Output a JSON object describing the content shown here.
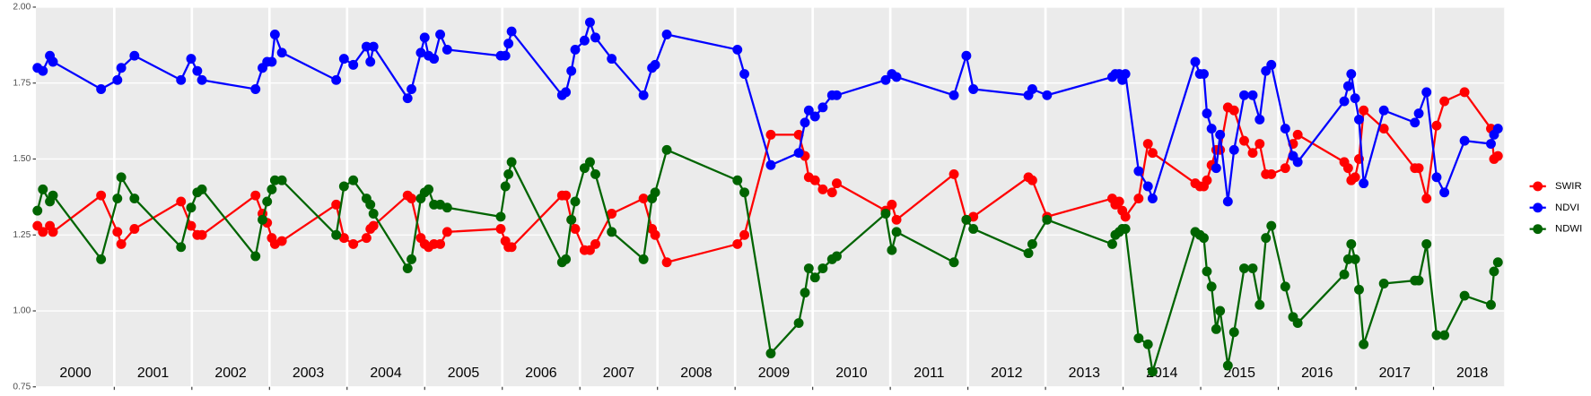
{
  "chart_data": {
    "type": "line",
    "x": [
      2000.01,
      2000.08,
      2000.17,
      2000.21,
      2000.83,
      2001.04,
      2001.09,
      2001.26,
      2001.86,
      2001.99,
      2002.07,
      2002.13,
      2002.82,
      2002.91,
      2002.97,
      2003.03,
      2003.07,
      2003.16,
      2003.86,
      2003.96,
      2004.08,
      2004.25,
      2004.3,
      2004.34,
      2004.78,
      2004.83,
      2004.95,
      2005.0,
      2005.05,
      2005.12,
      2005.2,
      2005.29,
      2005.98,
      2006.04,
      2006.08,
      2006.12,
      2006.77,
      2006.82,
      2006.89,
      2006.94,
      2007.06,
      2007.13,
      2007.2,
      2007.41,
      2007.82,
      2007.93,
      2007.97,
      2008.12,
      2009.03,
      2009.12,
      2009.46,
      2009.82,
      2009.9,
      2009.95,
      2010.03,
      2010.13,
      2010.25,
      2010.31,
      2010.94,
      2011.02,
      2011.08,
      2011.82,
      2011.98,
      2012.07,
      2012.78,
      2012.83,
      2013.02,
      2013.86,
      2013.9,
      2013.95,
      2013.99,
      2014.03,
      2014.2,
      2014.32,
      2014.38,
      2014.93,
      2014.99,
      2015.04,
      2015.08,
      2015.14,
      2015.2,
      2015.25,
      2015.35,
      2015.43,
      2015.56,
      2015.67,
      2015.76,
      2015.84,
      2015.91,
      2016.09,
      2016.19,
      2016.25,
      2016.85,
      2016.9,
      2016.94,
      2016.99,
      2017.04,
      2017.1,
      2017.36,
      2017.76,
      2017.81,
      2017.91,
      2018.04,
      2018.14,
      2018.4,
      2018.74,
      2018.78,
      2018.83
    ],
    "series": [
      {
        "name": "SWIR",
        "color": "#ff0000",
        "values": [
          1.28,
          1.26,
          1.28,
          1.26,
          1.38,
          1.26,
          1.22,
          1.27,
          1.36,
          1.28,
          1.25,
          1.25,
          1.38,
          1.32,
          1.29,
          1.24,
          1.22,
          1.23,
          1.35,
          1.24,
          1.22,
          1.24,
          1.27,
          1.28,
          1.38,
          1.37,
          1.24,
          1.22,
          1.21,
          1.22,
          1.22,
          1.26,
          1.27,
          1.23,
          1.21,
          1.21,
          1.38,
          1.38,
          1.3,
          1.27,
          1.2,
          1.2,
          1.22,
          1.32,
          1.37,
          1.27,
          1.25,
          1.16,
          1.22,
          1.25,
          1.58,
          1.58,
          1.51,
          1.44,
          1.43,
          1.4,
          1.39,
          1.42,
          1.33,
          1.35,
          1.3,
          1.45,
          1.3,
          1.31,
          1.44,
          1.43,
          1.31,
          1.37,
          1.35,
          1.36,
          1.33,
          1.31,
          1.37,
          1.55,
          1.52,
          1.42,
          1.41,
          1.41,
          1.43,
          1.48,
          1.53,
          1.53,
          1.67,
          1.66,
          1.56,
          1.52,
          1.55,
          1.45,
          1.45,
          1.47,
          1.55,
          1.58,
          1.49,
          1.47,
          1.43,
          1.44,
          1.5,
          1.66,
          1.6,
          1.47,
          1.47,
          1.37,
          1.61,
          1.69,
          1.72,
          1.6,
          1.5,
          1.51
        ]
      },
      {
        "name": "NDVI",
        "color": "#0000ff",
        "values": [
          1.8,
          1.79,
          1.84,
          1.82,
          1.73,
          1.76,
          1.8,
          1.84,
          1.76,
          1.83,
          1.79,
          1.76,
          1.73,
          1.8,
          1.82,
          1.82,
          1.91,
          1.85,
          1.76,
          1.83,
          1.81,
          1.87,
          1.82,
          1.87,
          1.7,
          1.73,
          1.85,
          1.9,
          1.84,
          1.83,
          1.91,
          1.86,
          1.84,
          1.84,
          1.88,
          1.92,
          1.71,
          1.72,
          1.79,
          1.86,
          1.89,
          1.95,
          1.9,
          1.83,
          1.71,
          1.8,
          1.81,
          1.91,
          1.86,
          1.78,
          1.48,
          1.52,
          1.62,
          1.66,
          1.64,
          1.67,
          1.71,
          1.71,
          1.76,
          1.78,
          1.77,
          1.71,
          1.84,
          1.73,
          1.71,
          1.73,
          1.71,
          1.77,
          1.78,
          1.78,
          1.76,
          1.78,
          1.46,
          1.41,
          1.37,
          1.82,
          1.78,
          1.78,
          1.65,
          1.6,
          1.47,
          1.58,
          1.36,
          1.53,
          1.71,
          1.71,
          1.63,
          1.79,
          1.81,
          1.6,
          1.51,
          1.49,
          1.69,
          1.74,
          1.78,
          1.7,
          1.63,
          1.42,
          1.66,
          1.62,
          1.65,
          1.72,
          1.44,
          1.39,
          1.56,
          1.55,
          1.58,
          1.6
        ]
      },
      {
        "name": "NDWI",
        "color": "#006400",
        "values": [
          1.33,
          1.4,
          1.36,
          1.38,
          1.17,
          1.37,
          1.44,
          1.37,
          1.21,
          1.34,
          1.39,
          1.4,
          1.18,
          1.3,
          1.36,
          1.4,
          1.43,
          1.43,
          1.25,
          1.41,
          1.43,
          1.37,
          1.35,
          1.32,
          1.14,
          1.17,
          1.37,
          1.39,
          1.4,
          1.35,
          1.35,
          1.34,
          1.31,
          1.41,
          1.45,
          1.49,
          1.16,
          1.17,
          1.3,
          1.36,
          1.47,
          1.49,
          1.45,
          1.26,
          1.17,
          1.37,
          1.39,
          1.53,
          1.43,
          1.39,
          0.86,
          0.96,
          1.06,
          1.14,
          1.11,
          1.14,
          1.17,
          1.18,
          1.32,
          1.2,
          1.26,
          1.16,
          1.3,
          1.27,
          1.19,
          1.22,
          1.3,
          1.22,
          1.25,
          1.26,
          1.27,
          1.27,
          0.91,
          0.89,
          0.8,
          1.26,
          1.25,
          1.24,
          1.13,
          1.08,
          0.94,
          1.0,
          0.82,
          0.93,
          1.14,
          1.14,
          1.02,
          1.24,
          1.28,
          1.08,
          0.98,
          0.96,
          1.12,
          1.17,
          1.22,
          1.17,
          1.07,
          0.89,
          1.09,
          1.1,
          1.1,
          1.22,
          0.92,
          0.92,
          1.05,
          1.02,
          1.13,
          1.16
        ]
      }
    ],
    "xlim": [
      1999.99,
      2018.91
    ],
    "xticks": [
      2000,
      2001,
      2002,
      2003,
      2004,
      2005,
      2006,
      2007,
      2008,
      2009,
      2010,
      2011,
      2012,
      2013,
      2014,
      2015,
      2016,
      2017,
      2018
    ],
    "ylim": [
      0.75,
      2.0
    ],
    "yticks": [
      {
        "value": 0.75,
        "label": "0.75"
      },
      {
        "value": 1.0,
        "label": "1.00"
      },
      {
        "value": 1.25,
        "label": "1.25"
      },
      {
        "value": 1.5,
        "label": "1.50"
      },
      {
        "value": 1.75,
        "label": "1.75"
      },
      {
        "value": 2.0,
        "label": "2.00"
      }
    ],
    "grid": true
  }
}
